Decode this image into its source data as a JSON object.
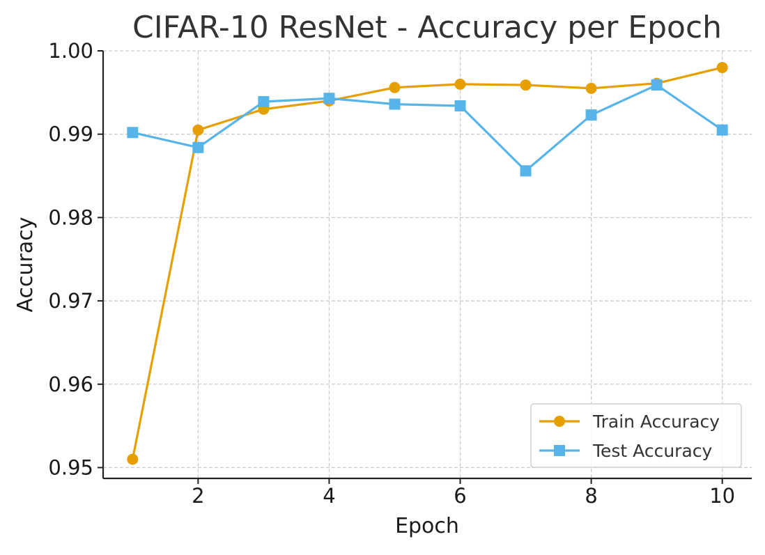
{
  "chart_data": {
    "type": "line",
    "title": "CIFAR-10 ResNet - Accuracy per Epoch",
    "xlabel": "Epoch",
    "ylabel": "Accuracy",
    "xlim": [
      0.55,
      10.45
    ],
    "ylim": [
      0.9487,
      1.0
    ],
    "xticks": [
      2,
      4,
      6,
      8,
      10
    ],
    "xtick_labels": [
      "2",
      "4",
      "6",
      "8",
      "10"
    ],
    "yticks": [
      0.95,
      0.96,
      0.97,
      0.98,
      0.99,
      1.0
    ],
    "ytick_labels": [
      "0.95",
      "0.96",
      "0.97",
      "0.98",
      "0.99",
      "1.00"
    ],
    "grid": true,
    "legend_position": "bottom-right",
    "x": [
      1,
      2,
      3,
      4,
      5,
      6,
      7,
      8,
      9,
      10
    ],
    "series": [
      {
        "name": "Train Accuracy",
        "marker": "circle",
        "color": "#E69F00",
        "values": [
          0.951,
          0.9905,
          0.993,
          0.994,
          0.9956,
          0.996,
          0.9959,
          0.9955,
          0.9961,
          0.998
        ]
      },
      {
        "name": "Test Accuracy",
        "marker": "square",
        "color": "#56B4E9",
        "values": [
          0.9902,
          0.9884,
          0.9939,
          0.9943,
          0.9936,
          0.9934,
          0.9856,
          0.9923,
          0.9959,
          0.9905
        ]
      }
    ]
  },
  "colors": {
    "axis": "#222222",
    "grid": "#cccccc",
    "text": "#1a1a1a",
    "title": "#333333",
    "legend_border": "#d0d0d0"
  }
}
